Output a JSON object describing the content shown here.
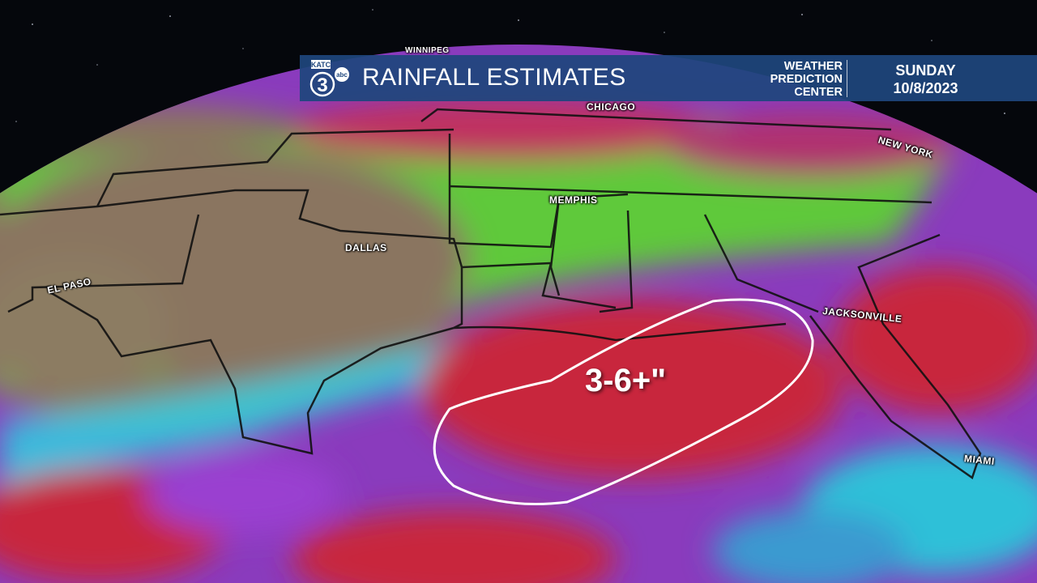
{
  "header": {
    "logo": {
      "station": "KATC",
      "channel": "3",
      "network": "abc"
    },
    "title": "RAINFALL ESTIMATES",
    "source_lines": [
      "WEATHER",
      "PREDICTION",
      "CENTER"
    ],
    "day": "SUNDAY",
    "date": "10/8/2023"
  },
  "map": {
    "cities": [
      "WINNIPEG",
      "CHICAGO",
      "NEW YORK",
      "MEMPHIS",
      "DALLAS",
      "EL PASO",
      "JACKSONVILLE",
      "MIAMI"
    ],
    "highlight_label": "3-6+\"",
    "colors": {
      "space": "#05070c",
      "land": "#8a7560",
      "light_rain": "#6fcf3a",
      "moderate": "#2fd0e0",
      "heavy": "#9a3fd0",
      "very_heavy": "#c8283c",
      "banner": "#1e467d"
    }
  }
}
